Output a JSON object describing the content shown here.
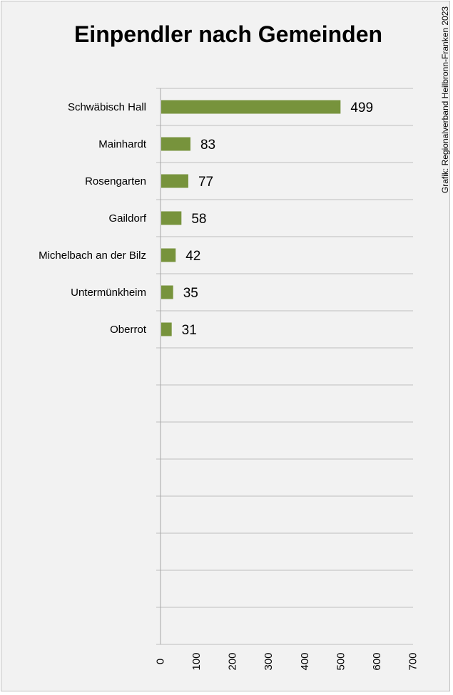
{
  "chart_data": {
    "type": "bar",
    "orientation": "horizontal",
    "title": "Einpendler nach Gemeinden",
    "credit": "Grafik: Regionalverband Heilbronn-Franken 2023",
    "categories": [
      "Schwäbisch Hall",
      "Mainhardt",
      "Rosengarten",
      "Gaildorf",
      "Michelbach an der Bilz",
      "Untermünkheim",
      "Oberrot"
    ],
    "values": [
      499,
      83,
      77,
      58,
      42,
      35,
      31
    ],
    "xlim": [
      0,
      700
    ],
    "xticks": [
      0,
      100,
      200,
      300,
      400,
      500,
      600,
      700
    ],
    "category_slots": 15,
    "grid": true,
    "legend": "none",
    "bar_color": "#77933c"
  }
}
